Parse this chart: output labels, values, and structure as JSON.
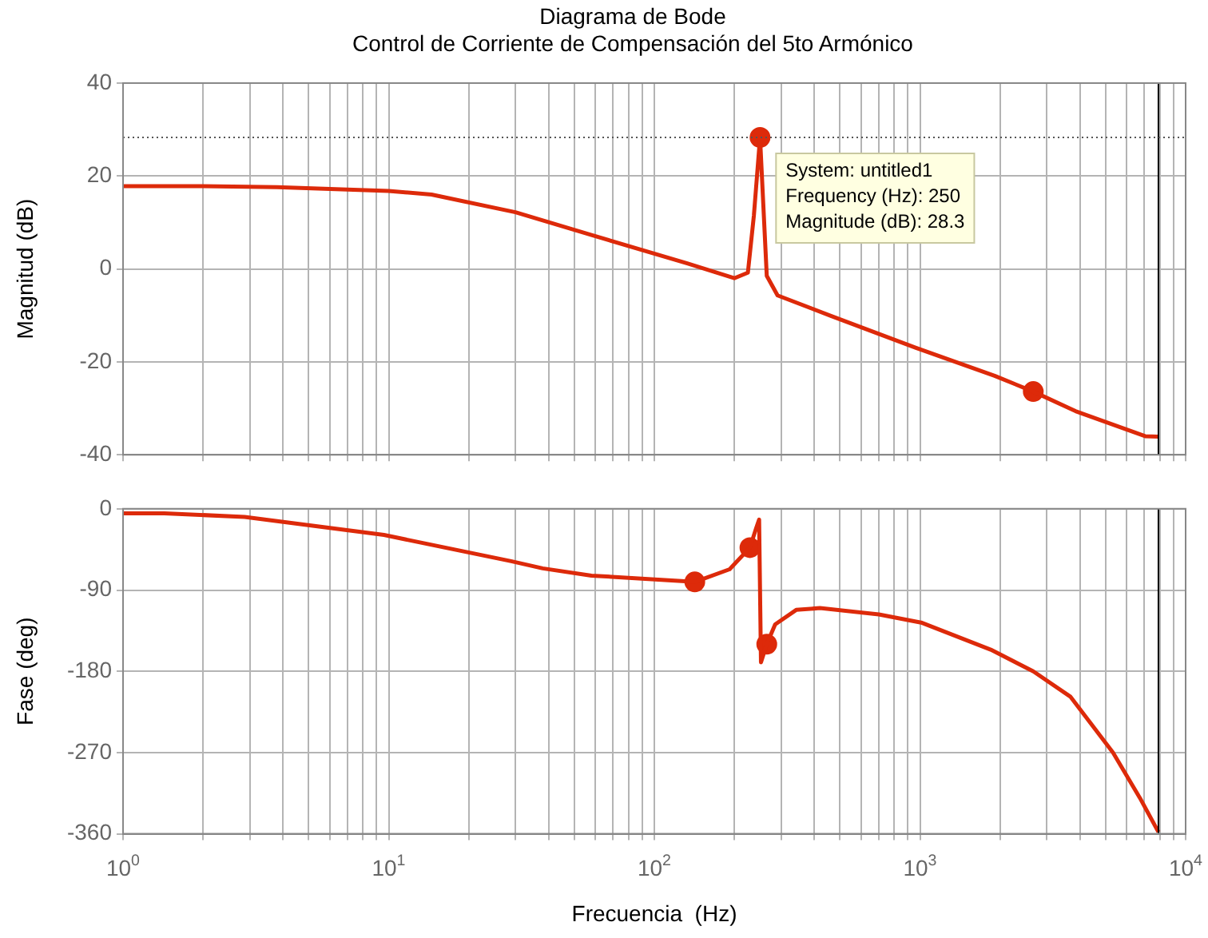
{
  "chart_data": [
    {
      "type": "line",
      "title": "Diagrama de Bode",
      "subtitle": "Control de Corriente de Compensación del 5to Armónico",
      "ylabel": "Magnitud (dB)",
      "log": "x",
      "grid": true,
      "tick_labels": "y",
      "xlim": [
        1,
        10000
      ],
      "xticks": [
        {
          "value": 1,
          "label": null
        },
        {
          "value": 2,
          "label": null
        },
        {
          "value": 3,
          "label": null
        },
        {
          "value": 4,
          "label": null
        },
        {
          "value": 5,
          "label": null
        },
        {
          "value": 6,
          "label": null
        },
        {
          "value": 7,
          "label": null
        },
        {
          "value": 8,
          "label": null
        },
        {
          "value": 9,
          "label": null
        },
        {
          "value": 10,
          "label": null
        },
        {
          "value": 20,
          "label": null
        },
        {
          "value": 30,
          "label": null
        },
        {
          "value": 40,
          "label": null
        },
        {
          "value": 50,
          "label": null
        },
        {
          "value": 60,
          "label": null
        },
        {
          "value": 70,
          "label": null
        },
        {
          "value": 80,
          "label": null
        },
        {
          "value": 90,
          "label": null
        },
        {
          "value": 100,
          "label": null
        },
        {
          "value": 200,
          "label": null
        },
        {
          "value": 300,
          "label": null
        },
        {
          "value": 400,
          "label": null
        },
        {
          "value": 500,
          "label": null
        },
        {
          "value": 600,
          "label": null
        },
        {
          "value": 700,
          "label": null
        },
        {
          "value": 800,
          "label": null
        },
        {
          "value": 900,
          "label": null
        },
        {
          "value": 1000,
          "label": null
        },
        {
          "value": 2000,
          "label": null
        },
        {
          "value": 3000,
          "label": null
        },
        {
          "value": 4000,
          "label": null
        },
        {
          "value": 5000,
          "label": null
        },
        {
          "value": 6000,
          "label": null
        },
        {
          "value": 7000,
          "label": null
        },
        {
          "value": 8000,
          "label": null
        },
        {
          "value": 9000,
          "label": null
        },
        {
          "value": 10000,
          "label": null
        }
      ],
      "ylim": [
        -40,
        40
      ],
      "yticks": [
        -40,
        -20,
        0,
        20,
        40
      ],
      "series": [
        {
          "color": "#dd2a0a",
          "x": [
            1,
            2,
            3.8,
            10,
            14.5,
            30,
            58,
            133,
            200,
            225,
            237,
            250,
            265,
            291,
            462,
            966,
            1910,
            2670,
            3850,
            7040,
            7900
          ],
          "values": [
            17.8,
            17.8,
            17.6,
            16.8,
            16,
            12.2,
            7.3,
            1.2,
            -2,
            -0.8,
            11.5,
            28.3,
            -1.5,
            -5.7,
            -10.1,
            -17,
            -23,
            -26.4,
            -30.6,
            -36,
            -36.1
          ]
        },
        {
          "type": "scatter",
          "marker": "circle",
          "color": "#dd2a0a",
          "x": [
            250,
            2670
          ],
          "values": [
            28.3,
            -26.4
          ]
        }
      ],
      "ref_lines": [
        {
          "axis": "x",
          "value": 7900,
          "color": "#000000",
          "line_style": "solid"
        },
        {
          "axis": "y",
          "value": 28.3,
          "color": "#555555",
          "line_style": "dotted"
        }
      ],
      "annotations": [
        {
          "text": "System: untitled1\nFrequency (Hz): 250\nMagnitude (dB): 28.3",
          "x": 250,
          "y": 28.3
        }
      ]
    },
    {
      "type": "line",
      "ylabel": "Fase (deg)",
      "xlabel": "Frecuencia  (Hz)",
      "log": "x",
      "grid": true,
      "xlim": [
        1,
        10000
      ],
      "xticks": [
        {
          "value": 1,
          "label": "10$^{0}$"
        },
        {
          "value": 2,
          "label": null
        },
        {
          "value": 3,
          "label": null
        },
        {
          "value": 4,
          "label": null
        },
        {
          "value": 5,
          "label": null
        },
        {
          "value": 6,
          "label": null
        },
        {
          "value": 7,
          "label": null
        },
        {
          "value": 8,
          "label": null
        },
        {
          "value": 9,
          "label": null
        },
        {
          "value": 10,
          "label": "10$^{1}$"
        },
        {
          "value": 20,
          "label": null
        },
        {
          "value": 30,
          "label": null
        },
        {
          "value": 40,
          "label": null
        },
        {
          "value": 50,
          "label": null
        },
        {
          "value": 60,
          "label": null
        },
        {
          "value": 70,
          "label": null
        },
        {
          "value": 80,
          "label": null
        },
        {
          "value": 90,
          "label": null
        },
        {
          "value": 100,
          "label": "10$^{2}$"
        },
        {
          "value": 200,
          "label": null
        },
        {
          "value": 300,
          "label": null
        },
        {
          "value": 400,
          "label": null
        },
        {
          "value": 500,
          "label": null
        },
        {
          "value": 600,
          "label": null
        },
        {
          "value": 700,
          "label": null
        },
        {
          "value": 800,
          "label": null
        },
        {
          "value": 900,
          "label": null
        },
        {
          "value": 1000,
          "label": "10$^{3}$"
        },
        {
          "value": 2000,
          "label": null
        },
        {
          "value": 3000,
          "label": null
        },
        {
          "value": 4000,
          "label": null
        },
        {
          "value": 5000,
          "label": null
        },
        {
          "value": 6000,
          "label": null
        },
        {
          "value": 7000,
          "label": null
        },
        {
          "value": 8000,
          "label": null
        },
        {
          "value": 9000,
          "label": null
        },
        {
          "value": 10000,
          "label": "10$^{4}$"
        }
      ],
      "ylim": [
        -360,
        0
      ],
      "yticks": [
        -360,
        -270,
        -180,
        -90,
        0
      ],
      "series": [
        {
          "color": "#dd2a0a",
          "x": [
            1,
            1.43,
            2.87,
            9.6,
            28.9,
            38,
            58,
            142,
            192,
            229,
            242,
            248,
            252,
            265,
            285,
            342,
            420,
            700,
            1010,
            1846,
            2670,
            3680,
            5330,
            6720,
            7900
          ],
          "values": [
            -5,
            -5,
            -9,
            -29,
            -58,
            -66,
            -74,
            -81,
            -67,
            -43,
            -21,
            -12,
            -170,
            -150,
            -128,
            -112,
            -110,
            -117,
            -126,
            -156,
            -180,
            -208,
            -270,
            -320,
            -358
          ]
        },
        {
          "type": "scatter",
          "marker": "circle",
          "color": "#dd2a0a",
          "x": [
            142,
            229,
            265
          ],
          "values": [
            -81,
            -43,
            -150
          ]
        }
      ],
      "ref_lines": [
        {
          "axis": "x",
          "value": 7900,
          "color": "#000000",
          "line_style": "solid"
        }
      ]
    }
  ]
}
